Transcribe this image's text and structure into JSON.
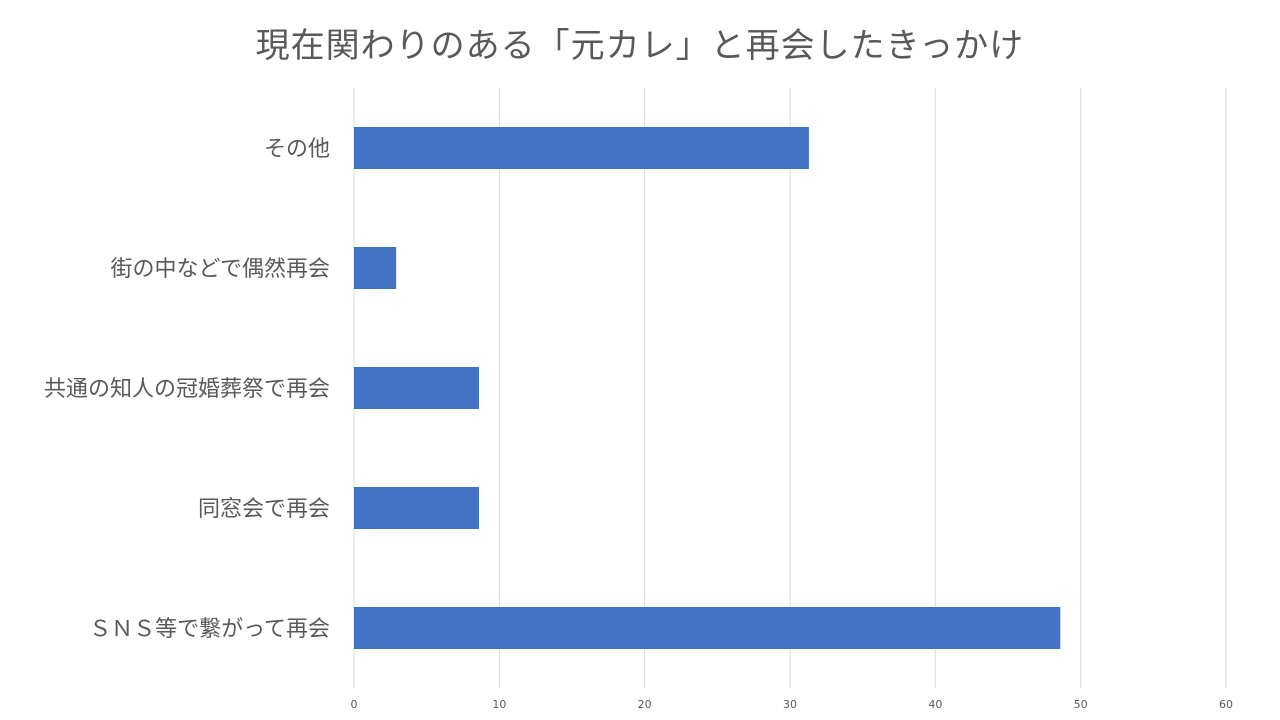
{
  "chart_data": {
    "type": "bar",
    "orientation": "horizontal",
    "title": "現在関わりのある「元カレ」と再会したきっかけ",
    "categories": [
      "その他",
      "街の中などで偶然再会",
      "共通の知人の冠婚葬祭で再会",
      "同窓会で再会",
      "ＳＮＳ等で繋がって再会"
    ],
    "values": [
      31.3,
      2.9,
      8.6,
      8.6,
      48.6
    ],
    "xlim": [
      0,
      60
    ],
    "xticks": [
      "0",
      "10",
      "20",
      "30",
      "40",
      "50",
      "60"
    ],
    "grid": true,
    "legend": "none",
    "bar_color": "#4472c4",
    "grid_color": "#d9d9d9",
    "text_color": "#595959"
  }
}
